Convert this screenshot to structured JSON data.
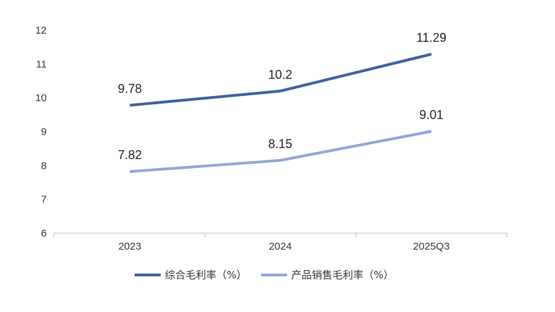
{
  "chart_data": {
    "type": "line",
    "title": "",
    "xlabel": "",
    "ylabel": "",
    "categories": [
      "2023",
      "2024",
      "2025Q3"
    ],
    "ylim": [
      6,
      12
    ],
    "yticks": [
      6,
      7,
      8,
      9,
      10,
      11,
      12
    ],
    "grid": false,
    "legend_position": "bottom",
    "series": [
      {
        "name": "综合毛利率（%）",
        "values": [
          9.78,
          10.2,
          11.29
        ],
        "labels": [
          "9.78",
          "10.2",
          "11.29"
        ],
        "color": "#3F5FA0"
      },
      {
        "name": "产品销售毛利率（%）",
        "values": [
          7.82,
          8.15,
          9.01
        ],
        "labels": [
          "7.82",
          "8.15",
          "9.01"
        ],
        "color": "#93A5D6"
      }
    ]
  }
}
